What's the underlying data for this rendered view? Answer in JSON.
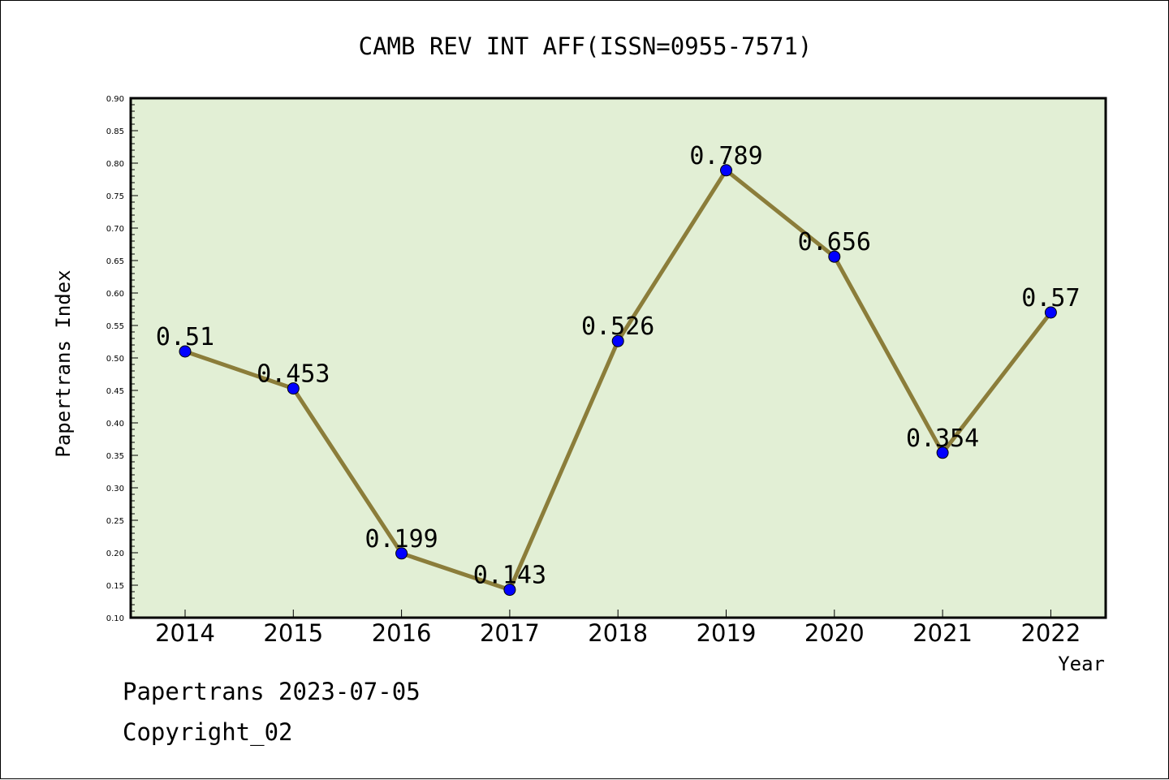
{
  "chart_data": {
    "type": "line",
    "title": "CAMB REV INT AFF(ISSN=0955-7571)",
    "xlabel": "Year",
    "ylabel": "Papertrans Index",
    "categories": [
      "2014",
      "2015",
      "2016",
      "2017",
      "2018",
      "2019",
      "2020",
      "2021",
      "2022"
    ],
    "series": [
      {
        "values": [
          0.51,
          0.453,
          0.199,
          0.143,
          0.526,
          0.789,
          0.656,
          0.354,
          0.57
        ],
        "labels": [
          "0.51",
          "0.453",
          "0.199",
          "0.143",
          "0.526",
          "0.789",
          "0.656",
          "0.354",
          "0.57"
        ]
      }
    ],
    "ylim": [
      0.1,
      0.9
    ],
    "yticks": [
      "0.10",
      "0.15",
      "0.20",
      "0.25",
      "0.30",
      "0.35",
      "0.40",
      "0.45",
      "0.50",
      "0.55",
      "0.60",
      "0.65",
      "0.70",
      "0.75",
      "0.80",
      "0.85",
      "0.90"
    ],
    "grid": false,
    "legend": "none",
    "colors": {
      "plot_background": "#e2efd5",
      "line": "#8b7d3a",
      "marker": "#0000ff"
    }
  },
  "footer": {
    "line1": "Papertrans 2023-07-05",
    "line2": "Copyright_02"
  }
}
